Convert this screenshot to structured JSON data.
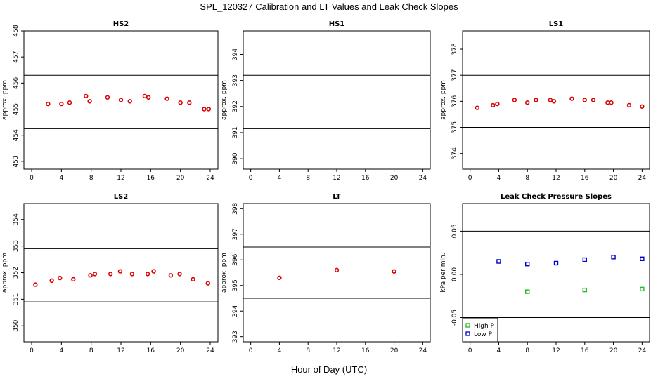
{
  "title": "SPL_120327  Calibration and LT Values and Leak Check Slopes",
  "xlabel": "Hour of Day (UTC)",
  "colors": {
    "calibration": "#dd0000",
    "high_p": "#22bb22",
    "low_p": "#0000cc"
  },
  "chart_data": [
    {
      "type": "scatter",
      "title": "HS2",
      "ylabel": "approx. ppm",
      "xlim": [
        0,
        24
      ],
      "ylim": [
        452.7,
        458
      ],
      "xticks": [
        0,
        4,
        8,
        12,
        16,
        20,
        24
      ],
      "yticks": [
        453,
        454,
        455,
        456,
        457,
        458
      ],
      "hlines": [
        454.25,
        456.3
      ],
      "series": [
        {
          "color": "calibration",
          "x": [
            2.2,
            4,
            5.1,
            7.3,
            7.8,
            10.2,
            12,
            13.2,
            15.2,
            15.7,
            18.2,
            20,
            21.2,
            23.2,
            23.8
          ],
          "y": [
            455.2,
            455.2,
            455.25,
            455.5,
            455.3,
            455.45,
            455.35,
            455.3,
            455.5,
            455.45,
            455.4,
            455.25,
            455.25,
            455,
            455
          ]
        }
      ]
    },
    {
      "type": "scatter",
      "title": "HS1",
      "ylabel": "approx. ppm",
      "xlim": [
        0,
        24
      ],
      "ylim": [
        389.6,
        394.9
      ],
      "xticks": [
        0,
        4,
        8,
        12,
        16,
        20,
        24
      ],
      "yticks": [
        390,
        391,
        392,
        393,
        394
      ],
      "hlines": [
        391.15,
        393.2
      ],
      "series": []
    },
    {
      "type": "scatter",
      "title": "LS1",
      "ylabel": "approx. ppm",
      "xlim": [
        0,
        24
      ],
      "ylim": [
        373.4,
        378.7
      ],
      "xticks": [
        0,
        4,
        8,
        12,
        16,
        20,
        24
      ],
      "yticks": [
        374,
        375,
        376,
        377,
        378
      ],
      "hlines": [
        375,
        377
      ],
      "series": [
        {
          "color": "calibration",
          "x": [
            1,
            3.2,
            3.8,
            6.2,
            8,
            9.2,
            11.2,
            11.7,
            14.2,
            16,
            17.2,
            19.2,
            19.7,
            22.2,
            24
          ],
          "y": [
            375.75,
            375.85,
            375.9,
            376.05,
            375.95,
            376.05,
            376.05,
            376,
            376.1,
            376.05,
            376.05,
            375.95,
            375.95,
            375.85,
            375.8
          ]
        }
      ]
    },
    {
      "type": "scatter",
      "title": "LS2",
      "ylabel": "approx. ppm",
      "xlim": [
        0,
        24
      ],
      "ylim": [
        349.4,
        354.6
      ],
      "xticks": [
        0,
        4,
        8,
        12,
        16,
        20,
        24
      ],
      "yticks": [
        350,
        351,
        352,
        353,
        354
      ],
      "hlines": [
        350.9,
        352.9
      ],
      "series": [
        {
          "color": "calibration",
          "x": [
            0.5,
            2.7,
            3.8,
            5.6,
            7.9,
            8.5,
            10.6,
            11.9,
            13.5,
            15.6,
            16.4,
            18.7,
            19.9,
            21.7,
            23.7
          ],
          "y": [
            351.55,
            351.7,
            351.8,
            351.75,
            351.9,
            351.95,
            351.95,
            352.05,
            351.95,
            351.95,
            352.05,
            351.9,
            351.95,
            351.75,
            351.6
          ]
        }
      ]
    },
    {
      "type": "scatter",
      "title": "LT",
      "ylabel": "approx. ppm",
      "xlim": [
        0,
        24
      ],
      "ylim": [
        392.8,
        398.2
      ],
      "xticks": [
        0,
        4,
        8,
        12,
        16,
        20,
        24
      ],
      "yticks": [
        393,
        394,
        395,
        396,
        397,
        398
      ],
      "hlines": [
        394.5,
        396.5
      ],
      "series": [
        {
          "color": "calibration",
          "x": [
            4,
            12,
            20
          ],
          "y": [
            395.3,
            395.6,
            395.55
          ]
        }
      ]
    },
    {
      "type": "scatter",
      "title": "Leak Check Pressure Slopes",
      "ylabel": "kPa per min.",
      "xlim": [
        0,
        24
      ],
      "ylim": [
        -0.078,
        0.082
      ],
      "xticks": [
        0,
        4,
        8,
        12,
        16,
        20,
        24
      ],
      "yticks": [
        -0.05,
        0,
        0.05
      ],
      "ytick_labels": [
        "-0.05",
        "0.00",
        "0.05"
      ],
      "hlines": [
        -0.05,
        0.05
      ],
      "legend": {
        "placement": "bottom-left",
        "entries": [
          "High P",
          "Low P"
        ]
      },
      "series": [
        {
          "name": "High P",
          "color": "high_p",
          "x": [
            8,
            16,
            24
          ],
          "y": [
            -0.02,
            -0.018,
            -0.017
          ]
        },
        {
          "name": "Low P",
          "color": "low_p",
          "x": [
            4,
            8,
            12,
            16,
            20,
            24
          ],
          "y": [
            0.015,
            0.012,
            0.013,
            0.017,
            0.02,
            0.018
          ]
        }
      ]
    }
  ]
}
